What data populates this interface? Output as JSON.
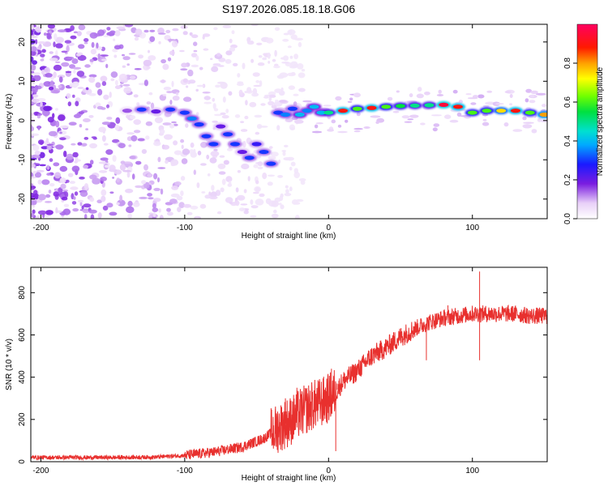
{
  "figure_title": "S197.2026.085.18.18.G06",
  "chart_data": [
    {
      "type": "heatmap",
      "xlabel": "Height of straight line (km)",
      "ylabel": "Frequency (Hz)",
      "xlim": [
        -207,
        152
      ],
      "ylim": [
        -25,
        24.5
      ],
      "x_ticks": [
        -200,
        -100,
        0,
        100
      ],
      "y_ticks": [
        -20,
        -10,
        0,
        10,
        20
      ],
      "colorbar": {
        "label": "Normalized spectral amplitude",
        "range": [
          0,
          1
        ],
        "ticks": [
          "0.0",
          "0.2",
          "0.4",
          "0.6",
          "0.8"
        ],
        "tick_values": [
          0,
          0.2,
          0.4,
          0.6,
          0.8
        ]
      },
      "ridge": [
        {
          "x": -140,
          "f": 2.5,
          "amp": 0.15
        },
        {
          "x": -130,
          "f": 2.8,
          "amp": 0.3
        },
        {
          "x": -120,
          "f": 2.3,
          "amp": 0.2
        },
        {
          "x": -110,
          "f": 2.8,
          "amp": 0.3
        },
        {
          "x": -100,
          "f": 2.0,
          "amp": 0.3
        },
        {
          "x": -95,
          "f": 0.5,
          "amp": 0.35
        },
        {
          "x": -90,
          "f": -1.0,
          "amp": 0.3
        },
        {
          "x": -85,
          "f": -4.0,
          "amp": 0.3
        },
        {
          "x": -80,
          "f": -6.0,
          "amp": 0.3
        },
        {
          "x": -75,
          "f": -1.5,
          "amp": 0.2
        },
        {
          "x": -70,
          "f": -3.5,
          "amp": 0.3
        },
        {
          "x": -65,
          "f": -6.0,
          "amp": 0.3
        },
        {
          "x": -60,
          "f": -8.0,
          "amp": 0.2
        },
        {
          "x": -55,
          "f": -9.5,
          "amp": 0.3
        },
        {
          "x": -50,
          "f": -6.0,
          "amp": 0.25
        },
        {
          "x": -45,
          "f": -8.0,
          "amp": 0.3
        },
        {
          "x": -40,
          "f": -11.0,
          "amp": 0.3
        },
        {
          "x": -35,
          "f": 2.0,
          "amp": 0.3
        },
        {
          "x": -30,
          "f": 1.5,
          "amp": 0.35
        },
        {
          "x": -25,
          "f": 3.0,
          "amp": 0.3
        },
        {
          "x": -20,
          "f": 1.5,
          "amp": 0.4
        },
        {
          "x": -15,
          "f": 2.5,
          "amp": 0.35
        },
        {
          "x": -10,
          "f": 3.5,
          "amp": 0.4
        },
        {
          "x": -5,
          "f": 2.0,
          "amp": 0.4
        },
        {
          "x": 0,
          "f": 2.0,
          "amp": 0.5
        },
        {
          "x": 10,
          "f": 2.5,
          "amp": 0.9
        },
        {
          "x": 20,
          "f": 3.0,
          "amp": 0.6
        },
        {
          "x": 30,
          "f": 3.2,
          "amp": 0.9
        },
        {
          "x": 40,
          "f": 3.5,
          "amp": 0.6
        },
        {
          "x": 50,
          "f": 3.7,
          "amp": 0.55
        },
        {
          "x": 60,
          "f": 3.8,
          "amp": 0.5
        },
        {
          "x": 70,
          "f": 3.9,
          "amp": 0.5
        },
        {
          "x": 80,
          "f": 4.0,
          "amp": 0.95
        },
        {
          "x": 90,
          "f": 3.5,
          "amp": 0.9
        },
        {
          "x": 100,
          "f": 2.0,
          "amp": 0.6
        },
        {
          "x": 110,
          "f": 2.5,
          "amp": 0.6
        },
        {
          "x": 120,
          "f": 2.5,
          "amp": 0.75
        },
        {
          "x": 130,
          "f": 2.5,
          "amp": 0.9
        },
        {
          "x": 140,
          "f": 2.0,
          "amp": 0.6
        },
        {
          "x": 150,
          "f": 1.5,
          "amp": 0.8
        }
      ]
    },
    {
      "type": "line",
      "xlabel": "Height of straight line (km)",
      "ylabel": "SNR (10 * v/v)",
      "xlim": [
        -207,
        152
      ],
      "ylim": [
        0,
        920
      ],
      "x_ticks": [
        -200,
        -100,
        0,
        100
      ],
      "y_ticks": [
        0,
        200,
        400,
        600,
        800
      ],
      "color": "#e8302e",
      "series": [
        {
          "name": "SNR",
          "x": [
            -207,
            -180,
            -150,
            -120,
            -100,
            -80,
            -60,
            -45,
            -35,
            -25,
            -20,
            -15,
            -10,
            -5,
            0,
            5,
            10,
            20,
            30,
            40,
            50,
            60,
            70,
            80,
            90,
            100,
            110,
            120,
            130,
            140,
            150
          ],
          "y": [
            20,
            20,
            20,
            22,
            30,
            45,
            70,
            110,
            160,
            200,
            230,
            250,
            270,
            280,
            300,
            330,
            380,
            430,
            500,
            540,
            590,
            630,
            660,
            680,
            690,
            700,
            700,
            700,
            700,
            690,
            690
          ]
        }
      ],
      "spikes": [
        {
          "x": 105,
          "y": 900
        },
        {
          "x": 105,
          "y": 480
        },
        {
          "x": 83,
          "y": 740
        },
        {
          "x": 68,
          "y": 480
        },
        {
          "x": 2,
          "y": 440
        },
        {
          "x": 5,
          "y": 50
        },
        {
          "x": 6,
          "y": 370
        },
        {
          "x": -22,
          "y": 350
        },
        {
          "x": -30,
          "y": 300
        }
      ]
    }
  ]
}
